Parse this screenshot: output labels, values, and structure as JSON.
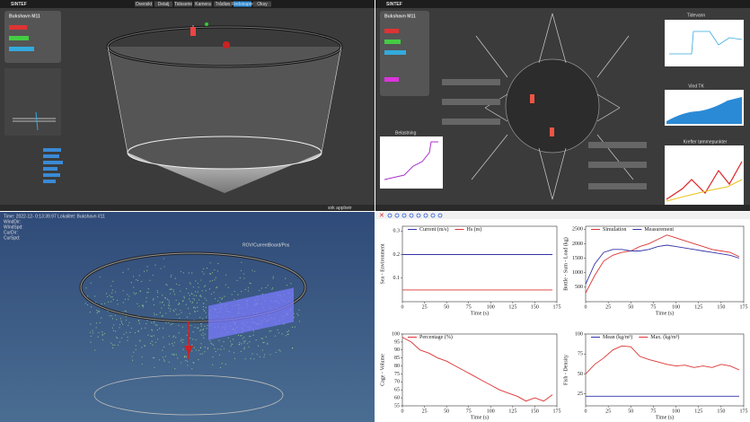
{
  "ui": {
    "top_left": {
      "logo": "SINTEF",
      "tabs": [
        "Oversikt",
        "Detalj",
        "Tidsserie",
        "Kamera",
        "Trådløs",
        "Redskaper",
        "Oksy"
      ],
      "site_title": "Bukshavn M11",
      "footer_button": "sirk applivér"
    },
    "top_right": {
      "logo": "SINTEF",
      "site_title": "Bukshavn M11",
      "chart_titles": [
        "Tidevann",
        "Vind TK",
        "Krefter tømmepunkter"
      ],
      "bottom_title": "Belastning"
    },
    "bottom_left": {
      "overlay_lines": [
        "Time:  2022-12-  0:13:39.97  Lokalitet: Bukshavn #11",
        "WindDir:",
        "WindSpd:",
        "CurDir:",
        "CurSpd:"
      ],
      "rov_label": "ROV/CurrentBoard/Pos"
    }
  },
  "chart_data": [
    {
      "type": "line",
      "ylabel": "Sea - Environment",
      "xlabel": "Time (s)",
      "x": [
        0,
        10,
        20,
        30,
        40,
        50,
        60,
        70,
        80,
        90,
        100,
        110,
        120,
        130,
        140,
        150,
        160,
        170
      ],
      "xlim": [
        0,
        175
      ],
      "xticks": [
        0,
        25,
        50,
        75,
        100,
        125,
        150,
        175
      ],
      "ylim": [
        0,
        0.32
      ],
      "yticks": [
        0.1,
        0.2,
        0.3
      ],
      "series": [
        {
          "name": "Current (m/s)",
          "color": "#3333aa",
          "values": [
            0.2,
            0.2,
            0.2,
            0.2,
            0.2,
            0.2,
            0.2,
            0.2,
            0.2,
            0.2,
            0.2,
            0.2,
            0.2,
            0.2,
            0.2,
            0.2,
            0.2,
            0.2
          ]
        },
        {
          "name": "Hs (m)",
          "color": "#dd3333",
          "values": [
            0.05,
            0.05,
            0.05,
            0.05,
            0.05,
            0.05,
            0.05,
            0.05,
            0.05,
            0.05,
            0.05,
            0.05,
            0.05,
            0.05,
            0.05,
            0.05,
            0.05,
            0.05
          ]
        }
      ]
    },
    {
      "type": "line",
      "ylabel": "Bottle - Sum - Load (kg)",
      "xlabel": "Time (s)",
      "x": [
        0,
        10,
        20,
        30,
        40,
        50,
        60,
        70,
        80,
        90,
        100,
        110,
        120,
        130,
        140,
        150,
        160,
        170
      ],
      "xlim": [
        0,
        175
      ],
      "xticks": [
        0,
        25,
        50,
        75,
        100,
        125,
        150,
        175
      ],
      "ylim": [
        0,
        2600
      ],
      "yticks": [
        500,
        1000,
        1500,
        2000,
        2500
      ],
      "series": [
        {
          "name": "Simulation",
          "color": "#dd3333",
          "values": [
            300,
            900,
            1400,
            1600,
            1700,
            1750,
            1900,
            2000,
            2150,
            2300,
            2200,
            2100,
            2000,
            1900,
            1800,
            1750,
            1700,
            1550
          ]
        },
        {
          "name": "Measurement",
          "color": "#3333aa",
          "values": [
            600,
            1300,
            1700,
            1800,
            1800,
            1750,
            1750,
            1800,
            1900,
            1950,
            1900,
            1850,
            1800,
            1750,
            1700,
            1650,
            1600,
            1500
          ]
        }
      ]
    },
    {
      "type": "line",
      "ylabel": "Cage - Volume",
      "xlabel": "Time (s)",
      "x": [
        0,
        10,
        20,
        30,
        40,
        50,
        60,
        70,
        80,
        90,
        100,
        110,
        120,
        130,
        140,
        150,
        160,
        170
      ],
      "xlim": [
        0,
        175
      ],
      "xticks": [
        0,
        25,
        50,
        75,
        100,
        125,
        150,
        175
      ],
      "ylim": [
        55,
        100
      ],
      "yticks": [
        55,
        60,
        65,
        70,
        75,
        80,
        85,
        90,
        95,
        100
      ],
      "series": [
        {
          "name": "Percentage (%)",
          "color": "#dd3333",
          "values": [
            98,
            95,
            90,
            88,
            85,
            83,
            80,
            77,
            74,
            71,
            68,
            65,
            63,
            61,
            58,
            60,
            58,
            62
          ]
        }
      ]
    },
    {
      "type": "line",
      "ylabel": "Fish - Density",
      "xlabel": "Time (s)",
      "x": [
        0,
        10,
        20,
        30,
        40,
        50,
        60,
        70,
        80,
        90,
        100,
        110,
        120,
        130,
        140,
        150,
        160,
        170
      ],
      "xlim": [
        0,
        175
      ],
      "xticks": [
        0,
        25,
        50,
        75,
        100,
        125,
        150,
        175
      ],
      "ylim": [
        10,
        100
      ],
      "yticks": [
        25,
        50,
        75,
        100
      ],
      "series": [
        {
          "name": "Mean (kg/m³)",
          "color": "#3333aa",
          "values": [
            22,
            22,
            22,
            22,
            22,
            22,
            22,
            22,
            22,
            22,
            22,
            22,
            22,
            22,
            22,
            22,
            22,
            22
          ]
        },
        {
          "name": "Max. (kg/m³)",
          "color": "#dd3333",
          "values": [
            50,
            62,
            70,
            80,
            85,
            84,
            72,
            68,
            65,
            62,
            60,
            61,
            58,
            60,
            58,
            62,
            60,
            55
          ]
        }
      ]
    }
  ]
}
